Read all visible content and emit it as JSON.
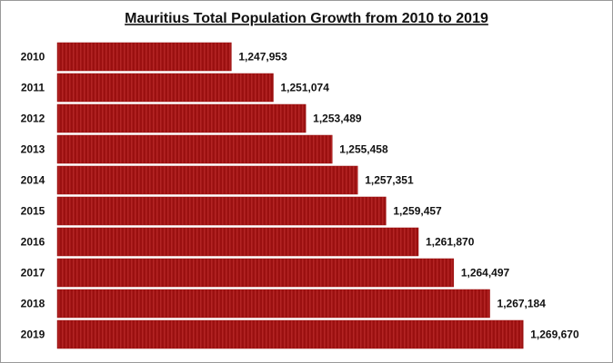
{
  "chart_data": {
    "type": "bar",
    "orientation": "horizontal",
    "title": "Mauritius Total Population Growth from 2010 to 2019",
    "categories": [
      "2010",
      "2011",
      "2012",
      "2013",
      "2014",
      "2015",
      "2016",
      "2017",
      "2018",
      "2019"
    ],
    "values": [
      1247953,
      1251074,
      1253489,
      1255458,
      1257351,
      1259457,
      1261870,
      1264497,
      1267184,
      1269670
    ],
    "value_labels": [
      "1,247,953",
      "1,251,074",
      "1,253,489",
      "1,255,458",
      "1,257,351",
      "1,259,457",
      "1,261,870",
      "1,264,497",
      "1,267,184",
      "1,269,670"
    ],
    "color": "#9b1010",
    "xlim": [
      1235000,
      1275000
    ]
  }
}
